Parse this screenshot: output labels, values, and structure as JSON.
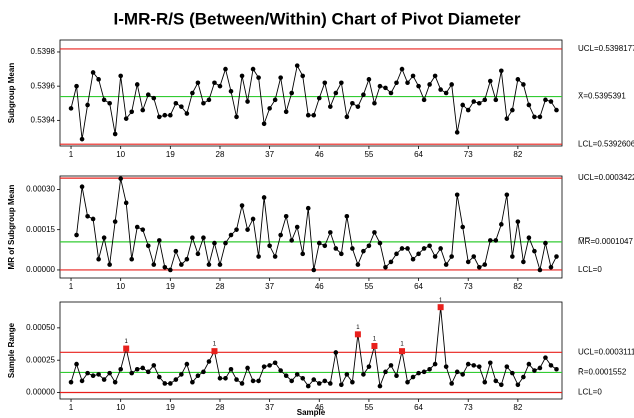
{
  "title": "I-MR-R/S (Between/Within) Chart of Pivot Diameter",
  "x_label": "Sample",
  "chart_data": [
    {
      "type": "line",
      "ylabel": "Subgroup Mean",
      "color": "#000000",
      "x": [
        1,
        2,
        3,
        4,
        5,
        6,
        7,
        8,
        9,
        10,
        11,
        12,
        13,
        14,
        15,
        16,
        17,
        18,
        19,
        20,
        21,
        22,
        23,
        24,
        25,
        26,
        27,
        28,
        29,
        30,
        31,
        32,
        33,
        34,
        35,
        36,
        37,
        38,
        39,
        40,
        41,
        42,
        43,
        44,
        45,
        46,
        47,
        48,
        49,
        50,
        51,
        52,
        53,
        54,
        55,
        56,
        57,
        58,
        59,
        60,
        61,
        62,
        63,
        64,
        65,
        66,
        67,
        68,
        69,
        70,
        71,
        72,
        73,
        74,
        75,
        76,
        77,
        78,
        79,
        80,
        81,
        82,
        83,
        84,
        85,
        86,
        87,
        88,
        89
      ],
      "values": [
        0.53947,
        0.5396,
        0.53929,
        0.53949,
        0.53968,
        0.53964,
        0.53952,
        0.5395,
        0.53932,
        0.53966,
        0.53941,
        0.53945,
        0.53961,
        0.53946,
        0.53955,
        0.53953,
        0.53942,
        0.53943,
        0.53943,
        0.5395,
        0.53948,
        0.53944,
        0.53956,
        0.53962,
        0.5395,
        0.53952,
        0.53962,
        0.5396,
        0.5397,
        0.53957,
        0.53942,
        0.53966,
        0.53951,
        0.5397,
        0.53965,
        0.53938,
        0.53947,
        0.53952,
        0.53965,
        0.53945,
        0.53956,
        0.53972,
        0.53966,
        0.53943,
        0.53943,
        0.53953,
        0.53962,
        0.53948,
        0.53956,
        0.53962,
        0.53942,
        0.5395,
        0.53948,
        0.53955,
        0.53964,
        0.5395,
        0.5396,
        0.53959,
        0.53956,
        0.53962,
        0.5397,
        0.53962,
        0.53966,
        0.5396,
        0.53952,
        0.53961,
        0.53966,
        0.53958,
        0.53956,
        0.53961,
        0.53933,
        0.53949,
        0.53946,
        0.53951,
        0.5395,
        0.53952,
        0.53963,
        0.53952,
        0.53969,
        0.53941,
        0.53946,
        0.53964,
        0.53961,
        0.53949,
        0.53942,
        0.53942,
        0.53952,
        0.53951,
        0.53946
      ],
      "xlim": [
        -1,
        90
      ],
      "xticks": [
        1,
        10,
        19,
        28,
        37,
        46,
        55,
        64,
        73,
        82
      ],
      "ylim": [
        0.53925,
        0.53987
      ],
      "yticks": [
        0.5394,
        0.5396,
        0.5398
      ],
      "limits": [
        {
          "value": 0.5398177,
          "label": "UCL=0.5398177",
          "color": "#e8201c"
        },
        {
          "value": 0.5395391,
          "label": "X̄=0.5395391",
          "color": "#33cc33"
        },
        {
          "value": 0.5392606,
          "label": "LCL=0.5392606",
          "color": "#e8201c"
        }
      ],
      "flagged_x": [],
      "flag_label": "1"
    },
    {
      "type": "line",
      "ylabel": "MR of Subgroup Mean",
      "color": "#000000",
      "x": [
        2,
        3,
        4,
        5,
        6,
        7,
        8,
        9,
        10,
        11,
        12,
        13,
        14,
        15,
        16,
        17,
        18,
        19,
        20,
        21,
        22,
        23,
        24,
        25,
        26,
        27,
        28,
        29,
        30,
        31,
        32,
        33,
        34,
        35,
        36,
        37,
        38,
        39,
        40,
        41,
        42,
        43,
        44,
        45,
        46,
        47,
        48,
        49,
        50,
        51,
        52,
        53,
        54,
        55,
        56,
        57,
        58,
        59,
        60,
        61,
        62,
        63,
        64,
        65,
        66,
        67,
        68,
        69,
        70,
        71,
        72,
        73,
        74,
        75,
        76,
        77,
        78,
        79,
        80,
        81,
        82,
        83,
        84,
        85,
        86,
        87,
        88,
        89
      ],
      "values": [
        0.00013,
        0.00031,
        0.0002,
        0.00019,
        4e-05,
        0.00012,
        2e-05,
        0.00018,
        0.00034,
        0.00025,
        4e-05,
        0.00016,
        0.00015,
        9e-05,
        2e-05,
        0.00011,
        1e-05,
        0,
        7e-05,
        2e-05,
        4e-05,
        0.00012,
        6e-05,
        0.00012,
        2e-05,
        0.0001,
        2e-05,
        0.0001,
        0.00013,
        0.00015,
        0.00024,
        0.00015,
        0.00019,
        5e-05,
        0.00027,
        9e-05,
        5e-05,
        0.00013,
        0.0002,
        0.00011,
        0.00016,
        6e-05,
        0.00023,
        0,
        0.0001,
        9e-05,
        0.00014,
        8e-05,
        6e-05,
        0.0002,
        8e-05,
        2e-05,
        7e-05,
        9e-05,
        0.00014,
        0.0001,
        1e-05,
        3e-05,
        6e-05,
        8e-05,
        8e-05,
        4e-05,
        6e-05,
        8e-05,
        9e-05,
        5e-05,
        8e-05,
        2e-05,
        5e-05,
        0.00028,
        0.00016,
        3e-05,
        5e-05,
        1e-05,
        2e-05,
        0.00011,
        0.00011,
        0.00017,
        0.00028,
        5e-05,
        0.00018,
        3e-05,
        0.00012,
        7e-05,
        0,
        0.0001,
        1e-05,
        5e-05
      ],
      "xlim": [
        -1,
        90
      ],
      "xticks": [
        1,
        10,
        19,
        28,
        37,
        46,
        55,
        64,
        73,
        82
      ],
      "ylim": [
        -3e-05,
        0.00035
      ],
      "yticks": [
        {
          "value": 0,
          "label": "0.00000"
        },
        {
          "value": 0.00015,
          "label": "0.00015"
        },
        {
          "value": 0.0003,
          "label": "0.00030"
        }
      ],
      "limits": [
        {
          "value": 0.0003422,
          "label": "UCL=0.0003422",
          "color": "#e8201c"
        },
        {
          "value": 0.0001047,
          "label": "M̅R̅=0.0001047",
          "color": "#33cc33"
        },
        {
          "value": 0,
          "label": "LCL=0",
          "color": "#e8201c"
        }
      ],
      "flagged_x": [],
      "flag_label": "1"
    },
    {
      "type": "line",
      "ylabel": "Sample Range",
      "color": "#000000",
      "x": [
        1,
        2,
        3,
        4,
        5,
        6,
        7,
        8,
        9,
        10,
        11,
        12,
        13,
        14,
        15,
        16,
        17,
        18,
        19,
        20,
        21,
        22,
        23,
        24,
        25,
        26,
        27,
        28,
        29,
        30,
        31,
        32,
        33,
        34,
        35,
        36,
        37,
        38,
        39,
        40,
        41,
        42,
        43,
        44,
        45,
        46,
        47,
        48,
        49,
        50,
        51,
        52,
        53,
        54,
        55,
        56,
        57,
        58,
        59,
        60,
        61,
        62,
        63,
        64,
        65,
        66,
        67,
        68,
        69,
        70,
        71,
        72,
        73,
        74,
        75,
        76,
        77,
        78,
        79,
        80,
        81,
        82,
        83,
        84,
        85,
        86,
        87,
        88,
        89
      ],
      "values": [
        8e-05,
        0.00022,
        9e-05,
        0.00015,
        0.00013,
        0.00014,
        0.0001,
        0.00015,
        8e-05,
        0.00018,
        0.00034,
        0.00015,
        0.00018,
        0.00019,
        0.00016,
        0.00021,
        0.00012,
        7e-05,
        7e-05,
        0.0001,
        0.00014,
        0.00022,
        8e-05,
        0.00013,
        0.00016,
        0.00024,
        0.00032,
        0.00011,
        0.00011,
        0.00018,
        0.0001,
        7e-05,
        0.00019,
        9e-05,
        9e-05,
        0.0002,
        0.00021,
        0.00023,
        0.00017,
        0.00013,
        9e-05,
        0.00014,
        0.00011,
        5e-05,
        0.0001,
        7e-05,
        9e-05,
        7e-05,
        0.00031,
        6e-05,
        0.00014,
        8e-05,
        0.00045,
        0.00014,
        0.0002,
        0.00036,
        5e-05,
        0.00016,
        0.00021,
        0.00013,
        0.00032,
        8e-05,
        0.00012,
        0.00015,
        0.00016,
        0.00018,
        0.00022,
        0.00066,
        0.0002,
        7e-05,
        0.00016,
        0.00014,
        0.00022,
        0.00021,
        0.0002,
        8e-05,
        0.00023,
        9e-05,
        6e-05,
        0.0002,
        0.00015,
        6e-05,
        0.00012,
        0.00022,
        0.00017,
        0.00019,
        0.00027,
        0.00021,
        0.00018
      ],
      "xlim": [
        -1,
        90
      ],
      "xticks": [
        1,
        10,
        19,
        28,
        37,
        46,
        55,
        64,
        73,
        82
      ],
      "ylim": [
        -5e-05,
        0.0007
      ],
      "yticks": [
        {
          "value": 0,
          "label": "0.00000"
        },
        {
          "value": 0.00025,
          "label": "0.00025"
        },
        {
          "value": 0.0005,
          "label": "0.00050"
        }
      ],
      "limits": [
        {
          "value": 0.0003111,
          "label": "UCL=0.0003111",
          "color": "#e8201c"
        },
        {
          "value": 0.0001552,
          "label": "R̄=0.0001552",
          "color": "#33cc33"
        },
        {
          "value": 0,
          "label": "LCL=0",
          "color": "#e8201c"
        }
      ],
      "flagged_x": [
        11,
        27,
        53,
        56,
        61,
        68
      ],
      "flag_label": "1"
    }
  ]
}
